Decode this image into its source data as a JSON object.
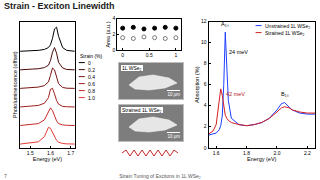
{
  "title": "Strain - Exciton Linewidth",
  "chart_data": [
    {
      "type": "line",
      "x_label": "Energy (eV)",
      "y_label": "Photoluminescence (offset)",
      "legend_title": "Strain (%)",
      "x": [
        1.45,
        1.5,
        1.54,
        1.57,
        1.59,
        1.6,
        1.61,
        1.62,
        1.63,
        1.64,
        1.66,
        1.68,
        1.72
      ],
      "series": [
        {
          "name": "0",
          "color": "#000000",
          "values": [
            5.0,
            5.02,
            5.05,
            5.1,
            5.2,
            5.35,
            5.7,
            6.2,
            6.3,
            5.8,
            5.2,
            5.05,
            5.0
          ]
        },
        {
          "name": "0.2",
          "color": "#4a0a0a",
          "values": [
            4.0,
            4.02,
            4.06,
            4.12,
            4.25,
            4.5,
            4.95,
            5.2,
            4.9,
            4.4,
            4.1,
            4.02,
            4.0
          ]
        },
        {
          "name": "0.4",
          "color": "#7a1414",
          "values": [
            3.0,
            3.03,
            3.07,
            3.15,
            3.35,
            3.7,
            4.1,
            4.0,
            3.6,
            3.25,
            3.05,
            3.01,
            3.0
          ]
        },
        {
          "name": "0.6",
          "color": "#a01e1e",
          "values": [
            2.0,
            2.03,
            2.08,
            2.2,
            2.5,
            2.95,
            3.0,
            2.7,
            2.35,
            2.15,
            2.03,
            2.01,
            2.0
          ]
        },
        {
          "name": "0.8",
          "color": "#c62828",
          "values": [
            1.0,
            1.04,
            1.1,
            1.3,
            1.75,
            1.95,
            1.8,
            1.5,
            1.25,
            1.1,
            1.03,
            1.01,
            1.0
          ]
        },
        {
          "name": "1.0",
          "color": "#e53935",
          "values": [
            0,
            0.05,
            0.12,
            0.4,
            0.9,
            0.85,
            0.65,
            0.4,
            0.2,
            0.1,
            0.03,
            0.01,
            0
          ]
        }
      ],
      "xlim": [
        1.45,
        1.72
      ],
      "xticks": [
        1.5,
        1.6,
        1.7
      ],
      "ylim": [
        -0.2,
        6.6
      ],
      "yticks": [],
      "tick_labels": "x",
      "grid": false,
      "legend": "right"
    },
    {
      "type": "scatter",
      "y_label": "Area (a.u.)",
      "x": [
        0,
        0.2,
        0.4,
        0.6,
        0.8,
        1.0
      ],
      "series": [
        {
          "color": "#000000",
          "marker": "circle",
          "values": [
            2.8,
            2.9,
            2.7,
            2.8,
            2.9,
            2.8
          ]
        },
        {
          "color": "#777777",
          "marker": "circle-open",
          "values": [
            1.6,
            1.5,
            1.7,
            1.6,
            1.5,
            1.6
          ]
        }
      ],
      "xlim": [
        -0.1,
        1.1
      ],
      "xticks": [
        0,
        0.5,
        1
      ],
      "ylim": [
        0,
        4
      ],
      "yticks": [
        0,
        2,
        4
      ],
      "grid": false
    },
    {
      "type": "line",
      "x_label": "Energy (eV)",
      "y_label": "Absorption (%)",
      "x": [
        1.55,
        1.58,
        1.6,
        1.62,
        1.63,
        1.64,
        1.65,
        1.66,
        1.67,
        1.68,
        1.7,
        1.75,
        1.8,
        1.85,
        1.9,
        1.95,
        2.0,
        2.03,
        2.05,
        2.08,
        2.1,
        2.15,
        2.2,
        2.25
      ],
      "series": [
        {
          "name": "Unstrained 1L WSe₂",
          "color": "#1f3fff",
          "values": [
            1.2,
            1.3,
            1.4,
            1.7,
            2.1,
            3.0,
            6.0,
            11.0,
            8.0,
            4.5,
            2.8,
            2.2,
            2.1,
            2.2,
            2.4,
            2.8,
            3.6,
            4.2,
            4.3,
            3.9,
            3.6,
            3.3,
            3.2,
            3.2
          ]
        },
        {
          "name": "Strained 1L WSe₂",
          "color": "#d42020",
          "values": [
            1.3,
            1.6,
            2.2,
            4.2,
            5.6,
            5.0,
            3.9,
            3.1,
            2.8,
            2.6,
            2.4,
            2.2,
            2.1,
            2.2,
            2.4,
            2.8,
            3.4,
            3.8,
            3.9,
            3.8,
            3.6,
            3.4,
            3.3,
            3.3
          ]
        }
      ],
      "xlim": [
        1.55,
        2.25
      ],
      "xticks": [
        1.6,
        1.8,
        {
          "value": 2,
          "label": "2.0"
        },
        2.2
      ],
      "ylim": [
        0,
        12
      ],
      "yticks": [
        0,
        2,
        4,
        6,
        8,
        10,
        12
      ],
      "grid": false,
      "legend": "upper right",
      "annotations": [
        {
          "text": "A₁ₛ",
          "x": 1.66,
          "y": 11.3,
          "color": "#000000"
        },
        {
          "text": "24 meV",
          "x": 1.745,
          "y": 8.6,
          "color": "#000000"
        },
        {
          "text": "42 meV",
          "x": 1.73,
          "y": 4.6,
          "color": "#b01818"
        },
        {
          "text": "B₁ₛ",
          "x": 2.05,
          "y": 4.6,
          "color": "#000000"
        }
      ]
    }
  ],
  "images": [
    {
      "label": "1L WSe₂",
      "scale_bar": "10 µm"
    },
    {
      "label": "Strained 1L WSe₂",
      "scale_bar": "10 µm"
    }
  ],
  "footer": {
    "page": 7,
    "text": "Strain Tuning of Excitons in 1L WSe₂"
  }
}
